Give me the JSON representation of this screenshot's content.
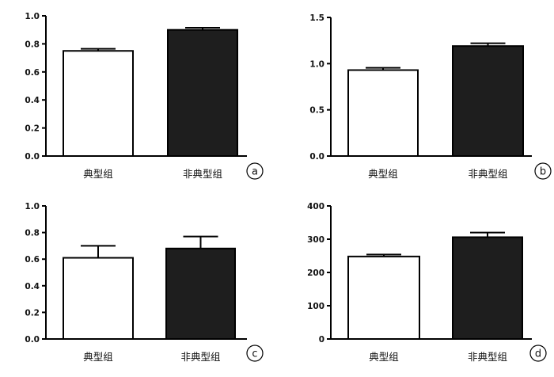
{
  "chart_data": [
    {
      "type": "bar",
      "panel_label": "a",
      "categories": [
        "典型组",
        "非典型组"
      ],
      "values": [
        0.75,
        0.9
      ],
      "errors": [
        0.015,
        0.015
      ],
      "ylim": [
        0,
        1.0
      ],
      "yticks": [
        "0.0",
        "0.2",
        "0.4",
        "0.6",
        "0.8",
        "1.0"
      ],
      "colors": [
        "#ffffff",
        "#1e1e1e"
      ],
      "title": "",
      "xlabel": "",
      "ylabel": ""
    },
    {
      "type": "bar",
      "panel_label": "b",
      "categories": [
        "典型组",
        "非典型组"
      ],
      "values": [
        0.93,
        1.19
      ],
      "errors": [
        0.025,
        0.03
      ],
      "ylim": [
        0,
        1.5
      ],
      "yticks": [
        "0.0",
        "0.5",
        "1.0",
        "1.5"
      ],
      "colors": [
        "#ffffff",
        "#1e1e1e"
      ],
      "title": "",
      "xlabel": "",
      "ylabel": ""
    },
    {
      "type": "bar",
      "panel_label": "c",
      "categories": [
        "典型组",
        "非典型组"
      ],
      "values": [
        0.61,
        0.68
      ],
      "errors": [
        0.09,
        0.09
      ],
      "ylim": [
        0,
        1.0
      ],
      "yticks": [
        "0.0",
        "0.2",
        "0.4",
        "0.6",
        "0.8",
        "1.0"
      ],
      "colors": [
        "#ffffff",
        "#1e1e1e"
      ],
      "title": "",
      "xlabel": "",
      "ylabel": ""
    },
    {
      "type": "bar",
      "panel_label": "d",
      "categories": [
        "典型组",
        "非典型组"
      ],
      "values": [
        248,
        306
      ],
      "errors": [
        6,
        14
      ],
      "ylim": [
        0,
        400
      ],
      "yticks": [
        "0",
        "100",
        "200",
        "300",
        "400"
      ],
      "colors": [
        "#ffffff",
        "#1e1e1e"
      ],
      "title": "",
      "xlabel": "",
      "ylabel": ""
    }
  ]
}
